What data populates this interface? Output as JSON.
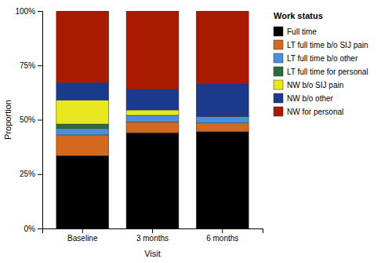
{
  "chart_data": {
    "type": "bar",
    "stacked": true,
    "categories": [
      "Baseline",
      "3 months",
      "6 months"
    ],
    "series": [
      {
        "name": "Full time",
        "color": "#000000",
        "values": [
          0.335,
          0.44,
          0.445
        ]
      },
      {
        "name": "LT full time b/o SIJ pain",
        "color": "#D2691E",
        "values": [
          0.095,
          0.05,
          0.04
        ]
      },
      {
        "name": "LT full time b/o other",
        "color": "#4A90D9",
        "values": [
          0.03,
          0.03,
          0.03
        ]
      },
      {
        "name": "LT full time for personal",
        "color": "#2D6B3C",
        "values": [
          0.02,
          0.0,
          0.0
        ]
      },
      {
        "name": "NW b/o SIJ pain",
        "color": "#E8E820",
        "values": [
          0.11,
          0.025,
          0.0
        ]
      },
      {
        "name": "NW b/o other",
        "color": "#1A3A8C",
        "values": [
          0.08,
          0.095,
          0.15
        ]
      },
      {
        "name": "NW for personal",
        "color": "#AA1A00",
        "values": [
          0.33,
          0.36,
          0.335
        ]
      }
    ],
    "xlabel": "Visit",
    "ylabel": "Proportion",
    "legend_title": "Work status",
    "legend": "right",
    "grid": false,
    "ylim": [
      0,
      1.0
    ],
    "yticks": [
      {
        "value": 0.0,
        "label": "0%"
      },
      {
        "value": 0.25,
        "label": "25%"
      },
      {
        "value": 0.5,
        "label": "50%"
      },
      {
        "value": 0.75,
        "label": "75%"
      },
      {
        "value": 1.0,
        "label": "100%"
      }
    ]
  }
}
